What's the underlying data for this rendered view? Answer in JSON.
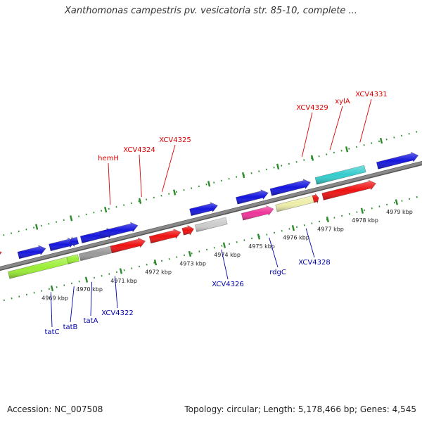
{
  "title": "Xanthomonas campestris pv. vesicatoria str. 85-10, complete ...",
  "accession": "Accession: NC_007508",
  "stats": "Topology: circular; Length: 5,178,466 bp; Genes: 4,545",
  "colors": {
    "backbone": "#888888",
    "tick": "#2d8a2d",
    "blue_gene": "#1515dd",
    "red_gene": "#ee1111",
    "green_gene": "#99ee33",
    "gray_gene": "#999999",
    "silver_gene": "#cccccc",
    "magenta_gene": "#ee3399",
    "khaki_gene": "#eeeeaa",
    "cyan_gene": "#33cccc",
    "forward_label": "#dd0000",
    "reverse_label": "#0000aa"
  },
  "ticks": [
    {
      "label": "4969 kbp"
    },
    {
      "label": "4970 kbp"
    },
    {
      "label": "4971 kbp"
    },
    {
      "label": "4972 kbp"
    },
    {
      "label": "4973 kbp"
    },
    {
      "label": "4974 kbp"
    },
    {
      "label": "4975 kbp"
    },
    {
      "label": "4976 kbp"
    },
    {
      "label": "4977 kbp"
    },
    {
      "label": "4978 kbp"
    },
    {
      "label": "4979 kbp"
    }
  ],
  "forward_labels": [
    "hemH",
    "XCV4324",
    "XCV4325",
    "XCV4329",
    "xylA",
    "XCV4331"
  ],
  "reverse_labels": [
    "tatC",
    "tatB",
    "tatA",
    "XCV4322",
    "XCV4326",
    "rdgC",
    "XCV4328"
  ]
}
